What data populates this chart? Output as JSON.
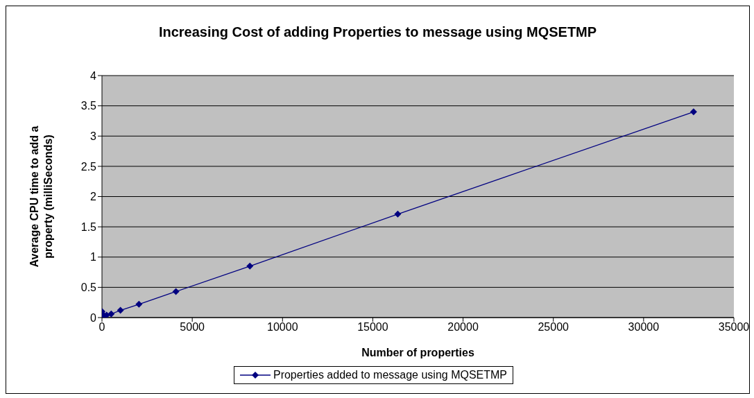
{
  "chart_data": {
    "type": "line",
    "title": "Increasing Cost of adding Properties to message using MQSETMP",
    "xlabel": "Number of properties",
    "ylabel": "Average CPU time to add a property (milliSeconds)",
    "x": [
      1,
      2,
      4,
      8,
      16,
      32,
      64,
      128,
      256,
      512,
      1024,
      2048,
      4096,
      8192,
      16384,
      32768
    ],
    "series": [
      {
        "name": "Properties added to message using MQSETMP",
        "color": "#000080",
        "values": [
          0.1,
          0.06,
          0.04,
          0.03,
          null,
          0.03,
          0.03,
          0.03,
          0.04,
          0.06,
          0.12,
          0.22,
          0.43,
          0.85,
          1.71,
          3.4
        ]
      }
    ],
    "xlim": [
      0,
      35000
    ],
    "xticks": [
      0,
      5000,
      10000,
      15000,
      20000,
      25000,
      30000,
      35000
    ],
    "ylim": [
      0,
      4
    ],
    "yticks": [
      0,
      0.5,
      1,
      1.5,
      2,
      2.5,
      3,
      3.5,
      4
    ],
    "grid": "y",
    "legend": "bottom",
    "marker": "diamond",
    "line_style": "solid"
  }
}
